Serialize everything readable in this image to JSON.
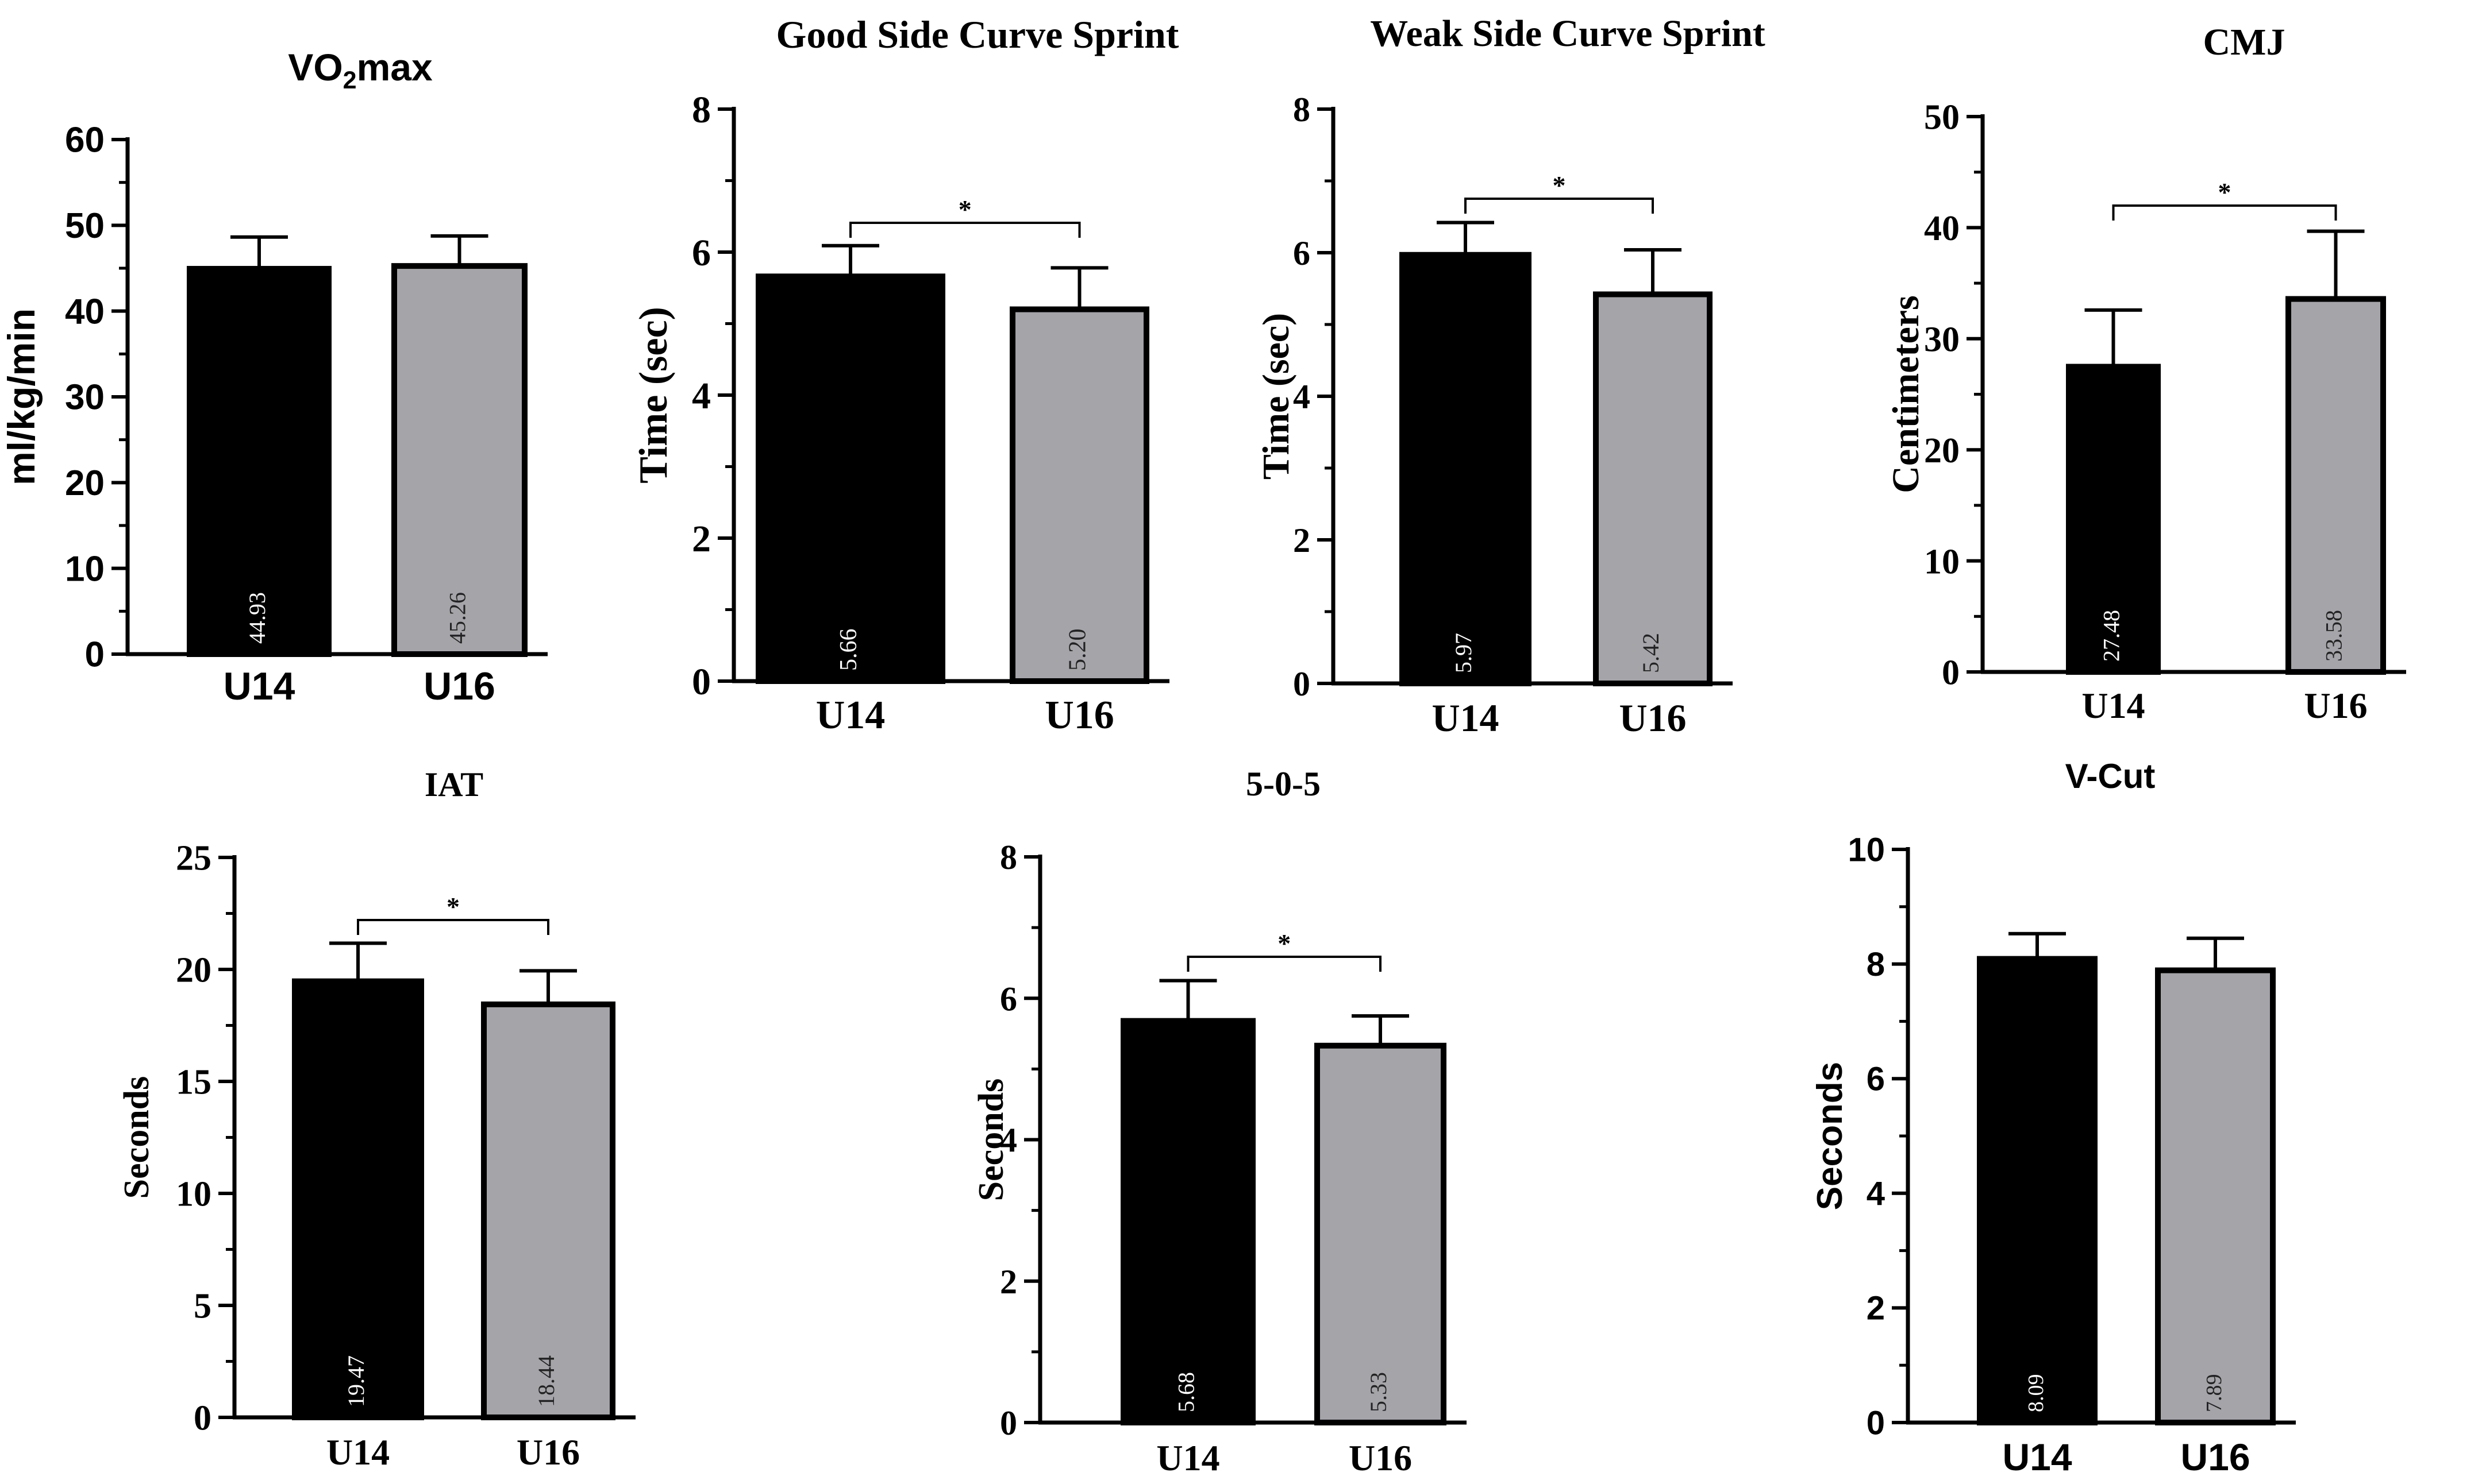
{
  "chart_data": [
    {
      "type": "bar",
      "title": "VO",
      "title_sub": "2",
      "title_rest": "max",
      "ylabel": "ml/kg/min",
      "categories": [
        "U14",
        "U16"
      ],
      "values": [
        44.93,
        45.26
      ],
      "errors": [
        3.7,
        3.5
      ],
      "value_labels": [
        "44.93",
        "45.26"
      ],
      "ylim": [
        0,
        60
      ],
      "yticks": [
        "0",
        "10",
        "20",
        "30",
        "40",
        "50",
        "60"
      ],
      "significance": null,
      "colors": [
        "#000000",
        "#a5a4a9"
      ]
    },
    {
      "type": "bar",
      "title": "Good Side Curve Sprint",
      "ylabel": "Time (sec)",
      "categories": [
        "U14",
        "U16"
      ],
      "values": [
        5.66,
        5.2
      ],
      "errors": [
        0.43,
        0.58
      ],
      "value_labels": [
        "5.66",
        "5.20"
      ],
      "ylim": [
        0,
        8
      ],
      "yticks": [
        "0",
        "2",
        "4",
        "6",
        "8"
      ],
      "significance": "*",
      "colors": [
        "#000000",
        "#a5a4a9"
      ]
    },
    {
      "type": "bar",
      "title": "Weak Side Curve Sprint",
      "ylabel": "Time (sec)",
      "categories": [
        "U14",
        "U16"
      ],
      "values": [
        5.97,
        5.42
      ],
      "errors": [
        0.45,
        0.62
      ],
      "value_labels": [
        "5.97",
        "5.42"
      ],
      "ylim": [
        0,
        8
      ],
      "yticks": [
        "0",
        "2",
        "4",
        "6",
        "8"
      ],
      "significance": "*",
      "colors": [
        "#000000",
        "#a5a4a9"
      ]
    },
    {
      "type": "bar",
      "title": "CMJ",
      "ylabel": "Centimeters",
      "categories": [
        "U14",
        "U16"
      ],
      "values": [
        27.48,
        33.58
      ],
      "errors": [
        5.1,
        6.1
      ],
      "value_labels": [
        "27.48",
        "33.58"
      ],
      "ylim": [
        0,
        50
      ],
      "yticks": [
        "0",
        "10",
        "20",
        "30",
        "40",
        "50"
      ],
      "significance": "*",
      "colors": [
        "#000000",
        "#a5a4a9"
      ]
    },
    {
      "type": "bar",
      "title": "IAT",
      "ylabel": "Seconds",
      "categories": [
        "U14",
        "U16"
      ],
      "values": [
        19.47,
        18.44
      ],
      "errors": [
        1.7,
        1.5
      ],
      "value_labels": [
        "19.47",
        "18.44"
      ],
      "ylim": [
        0,
        25
      ],
      "yticks": [
        "0",
        "5",
        "10",
        "15",
        "20",
        "25"
      ],
      "significance": "*",
      "colors": [
        "#000000",
        "#a5a4a9"
      ]
    },
    {
      "type": "bar",
      "title": "5-0-5",
      "ylabel": "Seconds",
      "categories": [
        "U14",
        "U16"
      ],
      "values": [
        5.68,
        5.33
      ],
      "errors": [
        0.57,
        0.42
      ],
      "value_labels": [
        "5.68",
        "5.33"
      ],
      "ylim": [
        0,
        8
      ],
      "yticks": [
        "0",
        "2",
        "4",
        "6",
        "8"
      ],
      "significance": "*",
      "colors": [
        "#000000",
        "#a5a4a9"
      ]
    },
    {
      "type": "bar",
      "title": "V-Cut",
      "ylabel": "Seconds",
      "categories": [
        "U14",
        "U16"
      ],
      "values": [
        8.09,
        7.89
      ],
      "errors": [
        0.44,
        0.56
      ],
      "value_labels": [
        "8.09",
        "7.89"
      ],
      "ylim": [
        0,
        10
      ],
      "yticks": [
        "0",
        "2",
        "4",
        "6",
        "8",
        "10"
      ],
      "significance": null,
      "colors": [
        "#000000",
        "#a5a4a9"
      ]
    }
  ]
}
